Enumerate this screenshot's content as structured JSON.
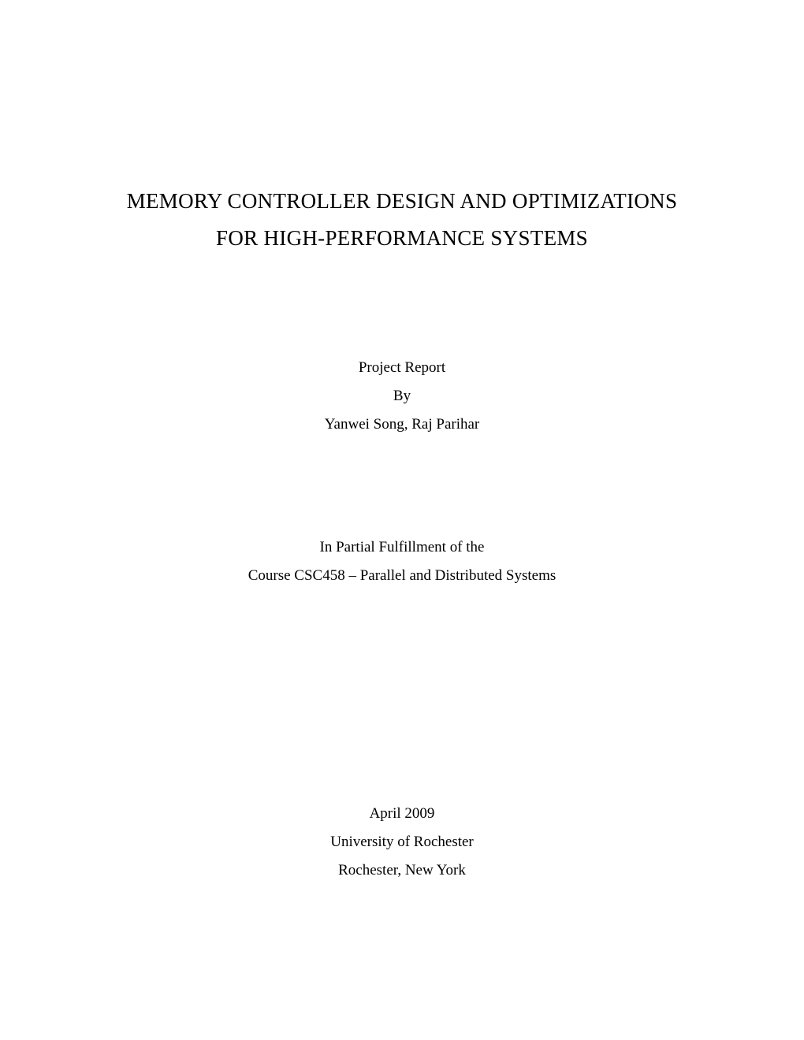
{
  "title": {
    "line1": "MEMORY CONTROLLER DESIGN AND OPTIMIZATIONS",
    "line2": "FOR HIGH-PERFORMANCE SYSTEMS"
  },
  "report": {
    "label": "Project Report",
    "by": "By",
    "authors": "Yanwei Song, Raj Parihar"
  },
  "fulfillment": {
    "line1": "In Partial Fulfillment of the",
    "line2": "Course CSC458 – Parallel and Distributed Systems"
  },
  "footer": {
    "date": "April 2009",
    "university": "University of Rochester",
    "location": "Rochester, New York"
  },
  "styles": {
    "title_fontsize": 27,
    "body_fontsize": 19,
    "font_family": "Times New Roman",
    "text_color": "#000000",
    "background_color": "#ffffff"
  }
}
